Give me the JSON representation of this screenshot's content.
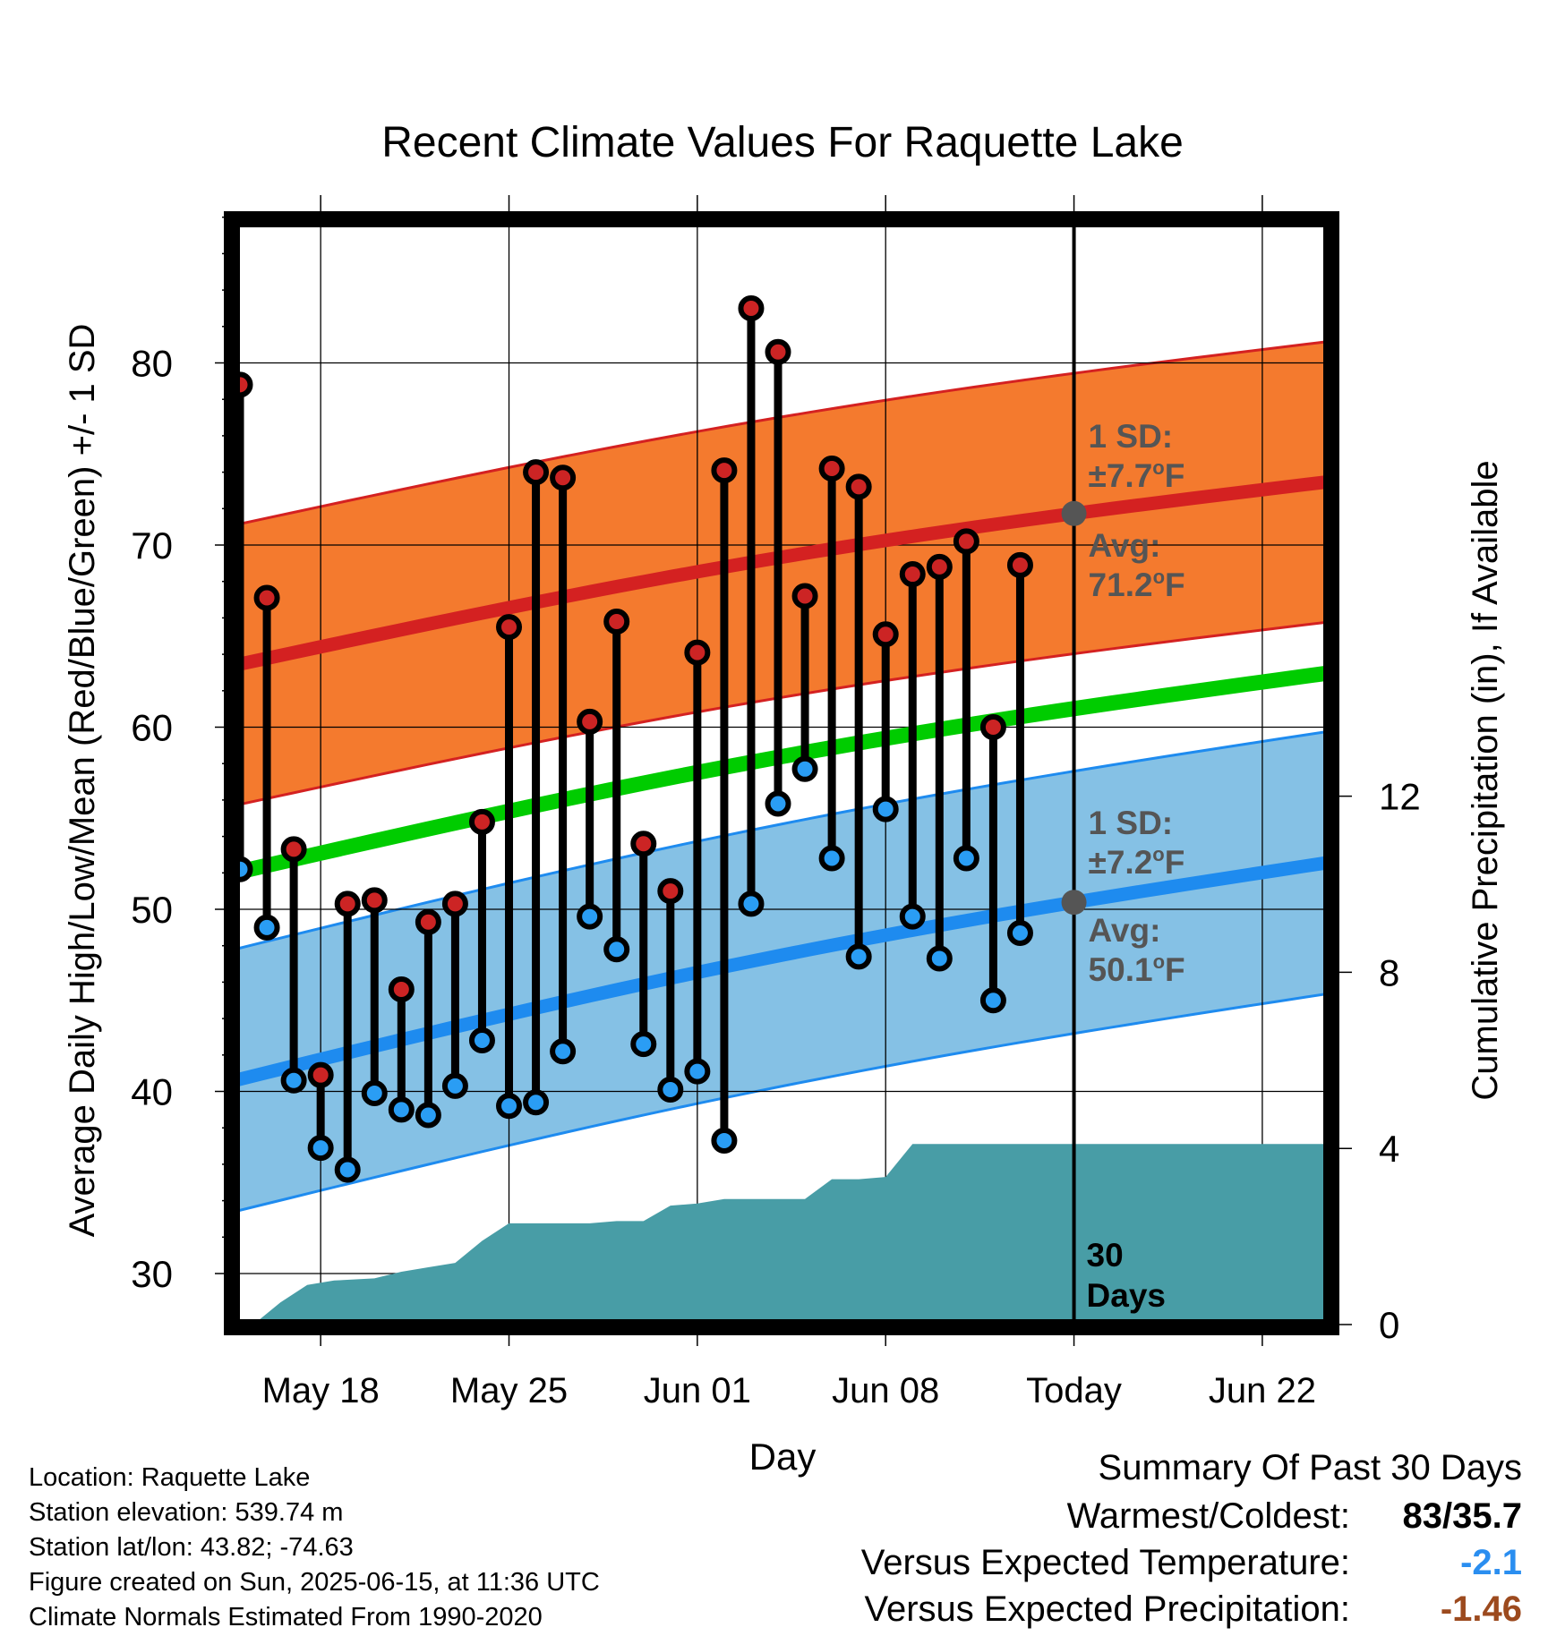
{
  "chart_data": {
    "type": "line",
    "title": "Recent Climate Values For Raquette Lake",
    "xlabel": "Day",
    "ylabel": "Average Daily High/Low/Mean (Red/Blue/Green) +/- 1 SD",
    "y2label": "Cumulative Precipitation (in), If Available",
    "x_tick_labels": [
      "May 18",
      "May 25",
      "Jun 01",
      "Jun 08",
      "Today",
      "Jun 22"
    ],
    "x_tick_days": [
      18,
      25,
      32,
      39,
      46,
      53
    ],
    "x_range_days": [
      14.8,
      55.6
    ],
    "ylim": [
      27.5,
      89.5
    ],
    "y_ticks": [
      30,
      40,
      50,
      60,
      70,
      80
    ],
    "y2lim": [
      0,
      18.3
    ],
    "y2_ticks": [
      0,
      4,
      8,
      12
    ],
    "today_day": 46,
    "today_label": "30 Days",
    "normals": {
      "high_avg": {
        "start": 63.4,
        "end": 73.5
      },
      "high_sd": 7.7,
      "low_avg": {
        "start": 40.6,
        "end": 52.6
      },
      "low_sd": 7.2,
      "mean_avg": {
        "start": 52.0,
        "end": 63.0
      },
      "high_annotation": [
        "1 SD:",
        "±7.7°F",
        "Avg:",
        "71.2°F"
      ],
      "low_annotation": [
        "1 SD:",
        "±7.2°F",
        "Avg:",
        "50.1°F"
      ]
    },
    "daily": {
      "days": [
        15,
        16,
        17,
        18,
        19,
        20,
        21,
        22,
        23,
        24,
        25,
        26,
        27,
        28,
        29,
        30,
        31,
        32,
        33,
        34,
        35,
        36,
        37,
        38,
        39,
        40,
        41,
        42,
        43,
        44,
        45
      ],
      "highs": [
        78.8,
        67.1,
        53.3,
        40.9,
        50.3,
        50.5,
        45.6,
        49.3,
        50.3,
        54.8,
        65.5,
        74.0,
        73.7,
        60.3,
        65.8,
        53.6,
        51.0,
        64.1,
        74.1,
        83.0,
        80.6,
        67.2,
        74.2,
        73.2,
        65.1,
        68.4,
        68.8,
        70.2,
        60.0,
        68.9,
        0
      ],
      "lows": [
        52.2,
        49.0,
        40.6,
        36.9,
        35.7,
        39.9,
        39.0,
        38.7,
        40.3,
        42.8,
        39.2,
        39.4,
        42.2,
        49.6,
        47.8,
        42.6,
        40.1,
        41.1,
        37.3,
        50.3,
        55.8,
        57.7,
        52.8,
        47.4,
        55.5,
        49.6,
        47.3,
        52.8,
        45.0,
        48.7,
        0
      ]
    },
    "precip": {
      "days": [
        15,
        15.5,
        16.5,
        17.5,
        18.5,
        20,
        21,
        22,
        23,
        24,
        25,
        26,
        27,
        28,
        29,
        30,
        31,
        32,
        33,
        34,
        35,
        36,
        37,
        38,
        39,
        40,
        41,
        42,
        43,
        44,
        45,
        46,
        47,
        48,
        50,
        52,
        54,
        55.6
      ],
      "values": [
        0,
        0,
        0.5,
        0.9,
        1.0,
        1.05,
        1.2,
        1.3,
        1.4,
        1.9,
        2.3,
        2.3,
        2.3,
        2.3,
        2.35,
        2.35,
        2.7,
        2.75,
        2.85,
        2.85,
        2.85,
        2.85,
        3.3,
        3.3,
        3.35,
        4.1,
        4.1,
        4.1,
        4.1,
        4.1,
        4.1,
        4.1,
        4.1,
        4.1,
        4.1,
        4.1,
        4.1,
        4.1
      ]
    }
  },
  "metadata": {
    "location": "Location: Raquette Lake",
    "elevation": "Station elevation: 539.74 m",
    "latlon": "Station lat/lon: 43.82; -74.63",
    "created": "Figure created on Sun, 2025-06-15, at 11:36 UTC",
    "normals": "Climate Normals Estimated From 1990-2020"
  },
  "summary": {
    "title": "Summary Of Past 30 Days",
    "warmest_coldest_label": "Warmest/Coldest:",
    "warmest_coldest_value": "83/35.7",
    "temp_label": "Versus Expected Temperature:",
    "temp_value": "-2.1",
    "precip_label": "Versus Expected Precipitation:",
    "precip_value": "-1.46"
  },
  "colors": {
    "high_band": "#f47a2e",
    "high_line": "#d42121",
    "low_band": "#85c1e5",
    "low_line": "#1e8bef",
    "mean_line": "#00cc00",
    "precip": "#489da6",
    "high_dot": "#cc2424",
    "low_dot": "#2a9df4",
    "annotation": "#555555",
    "temp_value": "#2a8ef0",
    "precip_value": "#9c4a1e"
  }
}
